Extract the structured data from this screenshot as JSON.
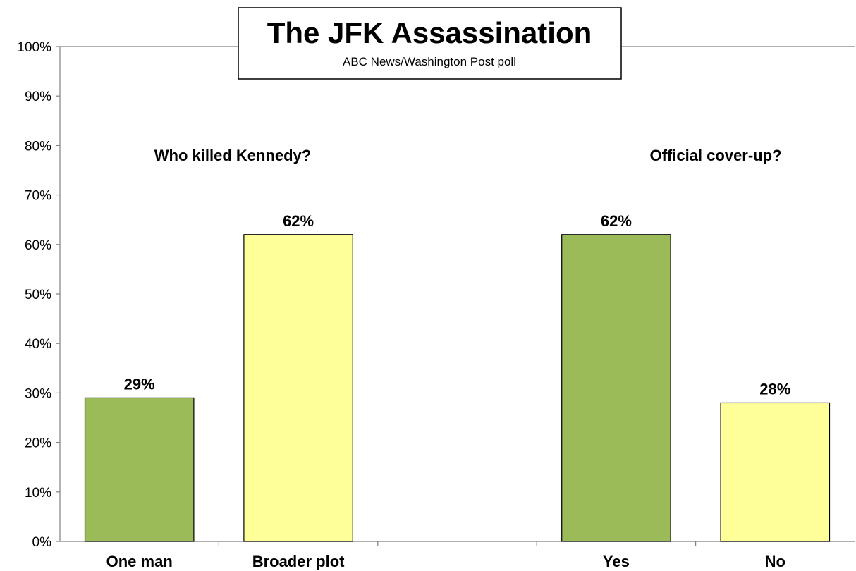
{
  "chart_data": {
    "type": "bar",
    "title": "The JFK Assassination",
    "subtitle": "ABC News/Washington  Post poll",
    "categories": [
      "One man",
      "Broader plot",
      "",
      "Yes",
      "No"
    ],
    "values": [
      29,
      62,
      null,
      62,
      28
    ],
    "value_labels": [
      "29%",
      "62%",
      "",
      "62%",
      "28%"
    ],
    "bar_colors": [
      "#9bbb59",
      "#ffff99",
      null,
      "#9bbb59",
      "#ffff99"
    ],
    "groups": [
      {
        "label": "Who killed Kennedy?",
        "categories": [
          "One man",
          "Broader plot"
        ]
      },
      {
        "label": "Official cover-up?",
        "categories": [
          "Yes",
          "No"
        ]
      }
    ],
    "ylim": [
      0,
      100
    ],
    "yticks": [
      "0%",
      "10%",
      "20%",
      "30%",
      "40%",
      "50%",
      "60%",
      "70%",
      "80%",
      "90%",
      "100%"
    ],
    "grid": false,
    "legend": "none"
  }
}
